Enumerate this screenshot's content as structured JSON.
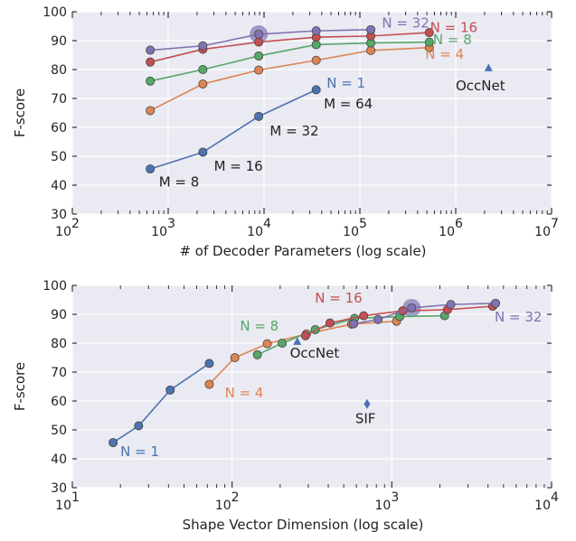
{
  "colors": {
    "blue": "#4c72b0",
    "orange": "#dd8452",
    "green": "#55a868",
    "red": "#c44e52",
    "purple": "#8172b2",
    "text": "#222222"
  },
  "chart_data": [
    {
      "type": "line",
      "xscale": "log",
      "xlabel": "# of Decoder Parameters (log scale)",
      "ylabel": "F-score",
      "xlim": [
        100,
        10000000
      ],
      "ylim": [
        30,
        100
      ],
      "xticks": [
        100,
        1000,
        10000,
        100000,
        1000000,
        10000000
      ],
      "xticklabels": [
        "10",
        "10",
        "10",
        "10",
        "10",
        "10"
      ],
      "xtickexps": [
        "2",
        "3",
        "4",
        "5",
        "6",
        "7"
      ],
      "yticks": [
        30,
        40,
        50,
        60,
        70,
        80,
        90,
        100
      ],
      "grid": true,
      "series": [
        {
          "name": "N = 1",
          "color": "blue",
          "x": [
            650,
            2300,
            8800,
            35000
          ],
          "y": [
            45.6,
            51.4,
            63.8,
            73.0
          ]
        },
        {
          "name": "N = 4",
          "color": "orange",
          "x": [
            650,
            2300,
            8800,
            35000,
            130000,
            530000
          ],
          "y": [
            65.8,
            75.0,
            79.8,
            83.2,
            86.6,
            87.6
          ]
        },
        {
          "name": "N = 8",
          "color": "green",
          "x": [
            650,
            2300,
            8800,
            35000,
            130000,
            530000
          ],
          "y": [
            76.0,
            80.0,
            84.7,
            88.6,
            89.2,
            89.5
          ]
        },
        {
          "name": "N = 16",
          "color": "red",
          "x": [
            650,
            2300,
            8800,
            35000,
            130000,
            530000
          ],
          "y": [
            82.6,
            87.0,
            89.5,
            91.2,
            91.6,
            92.8
          ]
        },
        {
          "name": "N = 32",
          "color": "purple",
          "x": [
            650,
            2300,
            8800,
            35000,
            130000
          ],
          "y": [
            86.7,
            88.2,
            92.2,
            93.4,
            93.8
          ]
        }
      ],
      "highlight": {
        "x": 8800,
        "y": 92.2,
        "color": "purple"
      },
      "markers": [
        {
          "label": "OccNet",
          "x": 2200000,
          "y": 80.5,
          "shape": "triangle",
          "color": "blue"
        }
      ],
      "annotations": [
        {
          "text": "N = 32",
          "x": 170000,
          "y": 94.5,
          "color": "purple"
        },
        {
          "text": "N = 16",
          "x": 540000,
          "y": 93.0,
          "color": "red"
        },
        {
          "text": "N = 8",
          "x": 580000,
          "y": 88.8,
          "color": "green"
        },
        {
          "text": "N = 4",
          "x": 480000,
          "y": 83.8,
          "color": "orange"
        },
        {
          "text": "OccNet",
          "x": 1000000,
          "y": 72.8,
          "color": "text"
        },
        {
          "text": "N = 1",
          "x": 45000,
          "y": 73.8,
          "color": "blue"
        },
        {
          "text": "M = 64",
          "x": 42000,
          "y": 66.6,
          "color": "text"
        },
        {
          "text": "M = 32",
          "x": 11500,
          "y": 57.2,
          "color": "text"
        },
        {
          "text": "M = 16",
          "x": 3000,
          "y": 45.0,
          "color": "text"
        },
        {
          "text": "M = 8",
          "x": 800,
          "y": 39.6,
          "color": "text"
        }
      ]
    },
    {
      "type": "line",
      "xscale": "log",
      "xlabel": "Shape Vector Dimension (log scale)",
      "ylabel": "F-score",
      "xlim": [
        10,
        10000
      ],
      "ylim": [
        30,
        100
      ],
      "xticks": [
        10,
        100,
        1000,
        10000
      ],
      "xticklabels": [
        "10",
        "10",
        "10",
        "10"
      ],
      "xtickexps": [
        "1",
        "2",
        "3",
        "4"
      ],
      "yticks": [
        30,
        40,
        50,
        60,
        70,
        80,
        90,
        100
      ],
      "grid": true,
      "series": [
        {
          "name": "N = 1",
          "color": "blue",
          "x": [
            18,
            26,
            41,
            72
          ],
          "y": [
            45.6,
            51.4,
            63.8,
            73.0
          ]
        },
        {
          "name": "N = 4",
          "color": "orange",
          "x": [
            72,
            104,
            166,
            292,
            560,
            1070
          ],
          "y": [
            65.8,
            75.0,
            79.8,
            83.2,
            86.6,
            87.6
          ]
        },
        {
          "name": "N = 8",
          "color": "green",
          "x": [
            144,
            206,
            332,
            584,
            1120,
            2140
          ],
          "y": [
            76.0,
            80.0,
            84.7,
            88.6,
            89.2,
            89.5
          ]
        },
        {
          "name": "N = 16",
          "color": "red",
          "x": [
            288,
            410,
            666,
            1170,
            2230,
            4280
          ],
          "y": [
            82.6,
            87.0,
            89.5,
            91.2,
            91.6,
            92.8
          ]
        },
        {
          "name": "N = 32",
          "color": "purple",
          "x": [
            576,
            820,
            1330,
            2340,
            4460
          ],
          "y": [
            86.7,
            88.2,
            92.2,
            93.4,
            93.8
          ]
        }
      ],
      "highlight": {
        "x": 1330,
        "y": 92.2,
        "color": "purple"
      },
      "markers": [
        {
          "label": "OccNet",
          "x": 256,
          "y": 80.5,
          "shape": "triangle",
          "color": "blue"
        },
        {
          "label": "SIF",
          "x": 700,
          "y": 59.0,
          "shape": "diamond",
          "color": "blue"
        }
      ],
      "annotations": [
        {
          "text": "N = 16",
          "x": 330,
          "y": 94.0,
          "color": "red"
        },
        {
          "text": "N = 8",
          "x": 112,
          "y": 84.3,
          "color": "green"
        },
        {
          "text": "OccNet",
          "x": 230,
          "y": 75.0,
          "color": "text"
        },
        {
          "text": "N = 4",
          "x": 90,
          "y": 61.2,
          "color": "orange"
        },
        {
          "text": "SIF",
          "x": 590,
          "y": 52.3,
          "color": "text"
        },
        {
          "text": "N = 1",
          "x": 20,
          "y": 41.0,
          "color": "blue"
        },
        {
          "text": "N = 32",
          "x": 4400,
          "y": 87.5,
          "color": "purple"
        }
      ]
    }
  ]
}
